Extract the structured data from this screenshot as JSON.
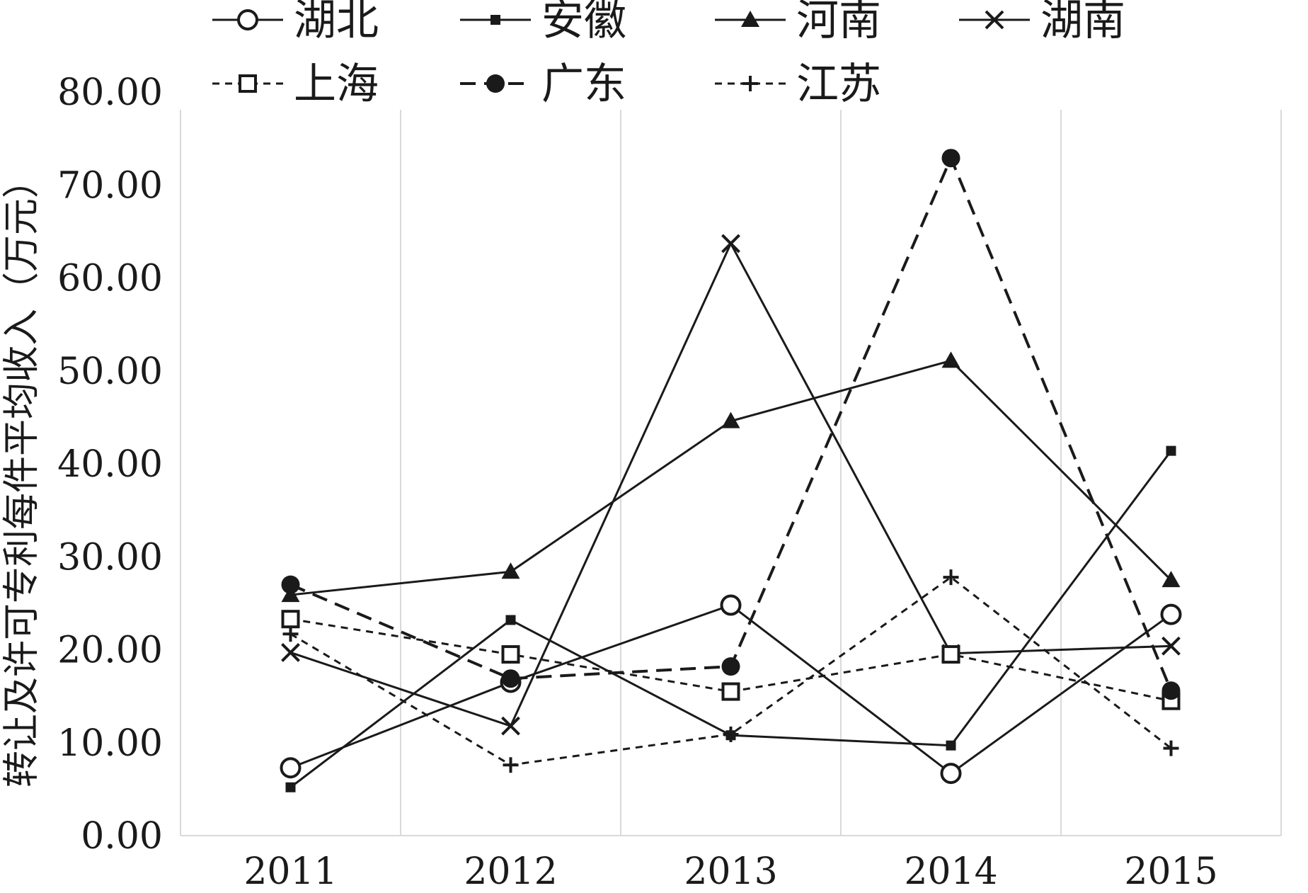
{
  "chart_data": {
    "type": "line",
    "title": "",
    "xlabel": "",
    "ylabel": "转让及许可专利每件平均收入（万元）",
    "categories": [
      "2011",
      "2012",
      "2013",
      "2014",
      "2015"
    ],
    "yticks": [
      "0.00",
      "10.00",
      "20.00",
      "30.00",
      "40.00",
      "50.00",
      "60.00",
      "70.00",
      "80.00"
    ],
    "ylim": [
      0,
      80
    ],
    "grid": "vertical",
    "legend_position": "top",
    "series": [
      {
        "name": "湖北",
        "values": [
          7.3,
          16.5,
          24.8,
          6.7,
          23.8
        ],
        "marker": "circle-open",
        "dash": "solid",
        "color": "#1a1a1a"
      },
      {
        "name": "安徽",
        "values": [
          5.2,
          23.2,
          10.8,
          9.7,
          41.4
        ],
        "marker": "square-small",
        "dash": "solid",
        "color": "#1a1a1a"
      },
      {
        "name": "河南",
        "values": [
          25.9,
          28.4,
          44.6,
          51.1,
          27.5
        ],
        "marker": "triangle",
        "dash": "solid",
        "color": "#1a1a1a"
      },
      {
        "name": "湖南",
        "values": [
          19.7,
          11.8,
          63.7,
          19.6,
          20.4
        ],
        "marker": "x",
        "dash": "solid",
        "color": "#1a1a1a"
      },
      {
        "name": "上海",
        "values": [
          23.3,
          19.5,
          15.5,
          19.5,
          14.5
        ],
        "marker": "square-open",
        "dash": "short",
        "color": "#1a1a1a"
      },
      {
        "name": "广东",
        "values": [
          27.0,
          16.9,
          18.2,
          72.9,
          15.6
        ],
        "marker": "circle-filled",
        "dash": "long",
        "color": "#1a1a1a"
      },
      {
        "name": "江苏",
        "values": [
          21.7,
          7.6,
          10.9,
          27.8,
          9.4
        ],
        "marker": "plus",
        "dash": "short",
        "color": "#1a1a1a"
      }
    ]
  }
}
